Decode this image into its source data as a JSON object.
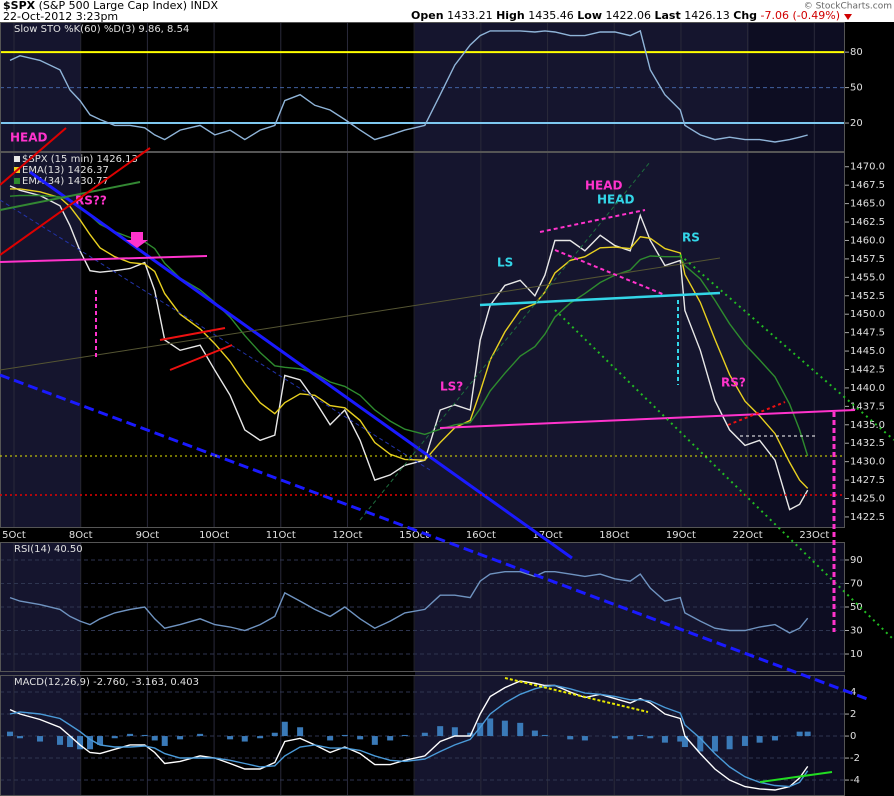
{
  "header": {
    "symbol": "$SPX",
    "name": "(S&P 500 Large Cap Index) INDX",
    "datetime": "22-Oct-2012 3:23pm",
    "quote": [
      {
        "label": "Open",
        "value": "1433.21"
      },
      {
        "label": "High",
        "value": "1435.46"
      },
      {
        "label": "Low",
        "value": "1422.06"
      },
      {
        "label": "Last",
        "value": "1426.13"
      },
      {
        "label": "Chg",
        "value": "-7.06 (-0.49%)"
      }
    ],
    "credit": "© StockCharts.com"
  },
  "chart_data": [
    {
      "type": "line",
      "title": "Slow STO %K(60) %D(3) 9.86, 8.54",
      "x": [
        -0.06,
        0.09,
        0.39,
        0.69,
        0.84,
        0.99,
        1.14,
        1.29,
        1.51,
        1.74,
        1.96,
        2.11,
        2.26,
        2.49,
        2.79,
        3.01,
        3.24,
        3.46,
        3.69,
        3.91,
        4.06,
        4.29,
        4.51,
        4.74,
        4.96,
        5.19,
        5.41,
        5.64,
        5.86,
        6.16,
        6.39,
        6.61,
        6.84,
        6.99,
        7.14,
        7.36,
        7.59,
        7.81,
        7.96,
        8.11,
        8.34,
        8.56,
        8.79,
        9.01,
        9.24,
        9.39,
        9.54,
        9.76,
        9.99,
        10.06,
        10.29,
        10.51,
        10.73,
        10.96,
        11.18,
        11.41,
        11.63,
        11.78,
        11.9
      ],
      "series": [
        {
          "color": "#8fb4d8",
          "values": [
            73,
            77,
            73,
            65,
            48,
            39,
            27,
            23,
            18,
            18,
            16,
            10,
            6,
            14,
            18,
            10,
            14,
            6,
            14,
            18,
            39,
            44,
            35,
            31,
            23,
            14,
            6,
            10,
            14,
            18,
            44,
            69,
            86,
            94,
            98,
            98,
            98,
            97,
            98,
            97,
            94,
            94,
            97,
            97,
            94,
            98,
            65,
            44,
            31,
            18,
            10,
            6,
            8,
            6,
            6,
            4,
            6,
            8,
            9.86
          ]
        }
      ],
      "xlim": [
        -0.21,
        12.46
      ],
      "ylim": [
        -4.5,
        105.5
      ],
      "yticks": [
        80,
        50,
        20
      ],
      "hlines": [
        {
          "value": 80,
          "color": "#ffff00"
        },
        {
          "value": 50,
          "color": "#4060a0",
          "dash": true
        },
        {
          "value": 20,
          "color": "#7ec8f0"
        }
      ]
    },
    {
      "type": "line",
      "x": [
        -0.06,
        0.09,
        0.39,
        0.69,
        0.84,
        0.99,
        1.14,
        1.29,
        1.51,
        1.74,
        1.96,
        2.11,
        2.26,
        2.49,
        2.79,
        3.01,
        3.24,
        3.46,
        3.69,
        3.91,
        4.06,
        4.29,
        4.51,
        4.74,
        4.96,
        5.19,
        5.41,
        5.64,
        5.86,
        6.16,
        6.39,
        6.61,
        6.84,
        6.99,
        7.14,
        7.36,
        7.59,
        7.81,
        7.96,
        8.11,
        8.34,
        8.56,
        8.79,
        9.01,
        9.24,
        9.39,
        9.54,
        9.76,
        9.99,
        10.06,
        10.29,
        10.51,
        10.73,
        10.96,
        11.18,
        11.41,
        11.63,
        11.78,
        11.9
      ],
      "series": [
        {
          "name": "$SPX (15 min) 1426.13",
          "color": "#e8e8e8",
          "values": [
            1467.4,
            1466.8,
            1466.1,
            1464.7,
            1462.0,
            1458.6,
            1455.9,
            1455.7,
            1455.9,
            1456.2,
            1457.0,
            1453.2,
            1446.5,
            1445.1,
            1445.8,
            1442.4,
            1439.0,
            1434.3,
            1432.9,
            1433.6,
            1441.7,
            1441.1,
            1438.3,
            1435.0,
            1437.0,
            1432.9,
            1427.5,
            1428.2,
            1429.5,
            1430.2,
            1437.0,
            1437.7,
            1437.0,
            1446.5,
            1451.2,
            1453.9,
            1454.6,
            1452.5,
            1455.3,
            1460.0,
            1460.0,
            1458.6,
            1460.7,
            1459.3,
            1458.6,
            1463.4,
            1460.0,
            1456.6,
            1457.3,
            1450.5,
            1445.1,
            1438.3,
            1434.3,
            1432.2,
            1432.9,
            1430.2,
            1423.5,
            1424.2,
            1426.13
          ]
        },
        {
          "name": "EMA(13) 1426.37",
          "color": "#e8d020",
          "values": [
            1467.0,
            1467.0,
            1466.6,
            1465.8,
            1464.6,
            1462.8,
            1460.8,
            1459.0,
            1457.8,
            1457.0,
            1456.8,
            1455.8,
            1452.8,
            1450.0,
            1448.0,
            1446.0,
            1443.6,
            1440.6,
            1438.0,
            1436.5,
            1438.0,
            1439.2,
            1439.0,
            1437.6,
            1437.3,
            1435.6,
            1432.6,
            1431.0,
            1430.3,
            1430.2,
            1432.6,
            1434.6,
            1435.6,
            1439.5,
            1443.8,
            1447.6,
            1450.6,
            1451.4,
            1453.0,
            1455.6,
            1457.3,
            1457.8,
            1459.0,
            1459.1,
            1458.9,
            1460.5,
            1460.3,
            1458.9,
            1458.3,
            1455.4,
            1451.6,
            1446.6,
            1441.8,
            1438.2,
            1436.2,
            1433.8,
            1429.9,
            1427.5,
            1426.37
          ]
        },
        {
          "name": "EMA(34) 1430.77",
          "color": "#2e8b2e",
          "values": [
            1466.0,
            1466.1,
            1466.1,
            1465.9,
            1465.5,
            1464.6,
            1463.4,
            1462.2,
            1461.2,
            1460.4,
            1459.8,
            1458.9,
            1456.9,
            1454.9,
            1453.3,
            1451.6,
            1449.6,
            1447.1,
            1444.8,
            1443.0,
            1442.8,
            1442.6,
            1442.0,
            1440.8,
            1440.2,
            1439.0,
            1437.0,
            1435.5,
            1434.4,
            1433.7,
            1434.4,
            1435.0,
            1435.3,
            1437.2,
            1439.6,
            1442.0,
            1444.3,
            1445.6,
            1447.3,
            1449.6,
            1451.5,
            1452.8,
            1454.3,
            1455.3,
            1456.0,
            1457.4,
            1457.9,
            1457.8,
            1457.8,
            1456.6,
            1454.8,
            1451.9,
            1448.7,
            1445.9,
            1443.8,
            1441.5,
            1437.8,
            1434.3,
            1430.77
          ]
        }
      ],
      "xlim": [
        -0.21,
        12.46
      ],
      "xticks": [
        {
          "value": 0,
          "label": "5Oct"
        },
        {
          "value": 1,
          "label": "8Oct"
        },
        {
          "value": 2,
          "label": "9Oct"
        },
        {
          "value": 3,
          "label": "10Oct"
        },
        {
          "value": 4,
          "label": "11Oct"
        },
        {
          "value": 5,
          "label": "12Oct"
        },
        {
          "value": 6,
          "label": "15Oct"
        },
        {
          "value": 7,
          "label": "16Oct"
        },
        {
          "value": 8,
          "label": "17Oct"
        },
        {
          "value": 9,
          "label": "18Oct"
        },
        {
          "value": 10,
          "label": "19Oct"
        },
        {
          "value": 11,
          "label": "22Oct"
        },
        {
          "value": 12,
          "label": "23Oct"
        }
      ],
      "ylim": [
        1421,
        1472
      ],
      "yticks": [
        1422.5,
        {
          "value": 1425,
          "label": "1425.0"
        },
        1427.5,
        {
          "value": 1430,
          "label": "1430.0"
        },
        1432.5,
        {
          "value": 1435,
          "label": "1435.0"
        },
        1437.5,
        {
          "value": 1440,
          "label": "1440.0"
        },
        1442.5,
        {
          "value": 1445,
          "label": "1445.0"
        },
        1447.5,
        {
          "value": 1450,
          "label": "1450.0"
        },
        1452.5,
        {
          "value": 1455,
          "label": "1455.0"
        },
        1457.5,
        {
          "value": 1460,
          "label": "1460.0"
        },
        1462.5,
        {
          "value": 1465,
          "label": "1465.0"
        },
        1467.5,
        {
          "value": 1470,
          "label": "1470.0"
        }
      ],
      "annotations": [
        {
          "text": "HEAD",
          "color": "#ff33cc"
        },
        {
          "text": "RS??",
          "color": "#ff33cc"
        },
        {
          "text": "HEAD",
          "color": "#ff33cc"
        },
        {
          "text": "HEAD",
          "color": "#33d6e8"
        },
        {
          "text": "LS",
          "color": "#33d6e8"
        },
        {
          "text": "RS",
          "color": "#33d6e8"
        },
        {
          "text": "LS?",
          "color": "#ff33cc"
        },
        {
          "text": "RS?",
          "color": "#ff33cc"
        }
      ]
    },
    {
      "type": "line",
      "title": "RSI(14) 40.50",
      "x": [
        -0.06,
        0.09,
        0.39,
        0.69,
        0.84,
        0.99,
        1.14,
        1.29,
        1.51,
        1.74,
        1.96,
        2.11,
        2.26,
        2.49,
        2.79,
        3.01,
        3.24,
        3.46,
        3.69,
        3.91,
        4.06,
        4.29,
        4.51,
        4.74,
        4.96,
        5.19,
        5.41,
        5.64,
        5.86,
        6.16,
        6.39,
        6.61,
        6.84,
        6.99,
        7.14,
        7.36,
        7.59,
        7.81,
        7.96,
        8.11,
        8.34,
        8.56,
        8.79,
        9.01,
        9.24,
        9.39,
        9.54,
        9.76,
        9.99,
        10.06,
        10.29,
        10.51,
        10.73,
        10.96,
        11.18,
        11.41,
        11.63,
        11.78,
        11.9
      ],
      "series": [
        {
          "color": "#6f93c0",
          "values": [
            58,
            55,
            52,
            48,
            42,
            38,
            35,
            40,
            45,
            48,
            50,
            40,
            32,
            35,
            40,
            35,
            33,
            30,
            35,
            42,
            62,
            55,
            48,
            42,
            50,
            40,
            32,
            38,
            45,
            48,
            60,
            60,
            58,
            72,
            78,
            80,
            80,
            76,
            80,
            80,
            78,
            76,
            78,
            74,
            72,
            78,
            66,
            55,
            58,
            45,
            38,
            32,
            30,
            30,
            33,
            35,
            28,
            32,
            40.5
          ]
        }
      ],
      "xlim": [
        -0.21,
        12.46
      ],
      "ylim": [
        -5.3,
        105.3
      ],
      "yticks": [
        90,
        70,
        50,
        30,
        10
      ],
      "grid": true
    },
    {
      "type": "line",
      "title": "MACD(12,26,9) -2.760, -3.163, 0.403",
      "x": [
        -0.06,
        0.09,
        0.39,
        0.69,
        0.84,
        0.99,
        1.14,
        1.29,
        1.51,
        1.74,
        1.96,
        2.11,
        2.26,
        2.49,
        2.79,
        3.01,
        3.24,
        3.46,
        3.69,
        3.91,
        4.06,
        4.29,
        4.51,
        4.74,
        4.96,
        5.19,
        5.41,
        5.64,
        5.86,
        6.16,
        6.39,
        6.61,
        6.84,
        6.99,
        7.14,
        7.36,
        7.59,
        7.81,
        7.96,
        8.11,
        8.34,
        8.56,
        8.79,
        9.01,
        9.24,
        9.39,
        9.54,
        9.76,
        9.99,
        10.06,
        10.29,
        10.51,
        10.73,
        10.96,
        11.18,
        11.41,
        11.63,
        11.78,
        11.9
      ],
      "series": [
        {
          "type": "bar",
          "color": "#3a7ab8",
          "values": [
            0.4,
            -0.2,
            -0.5,
            -0.8,
            -1.0,
            -1.2,
            -1.2,
            -0.8,
            -0.2,
            0.2,
            0.1,
            -0.4,
            -0.9,
            -0.3,
            0.2,
            0.0,
            -0.3,
            -0.5,
            -0.2,
            0.3,
            1.3,
            0.8,
            0.0,
            -0.4,
            0.1,
            -0.3,
            -0.8,
            -0.4,
            0.1,
            0.3,
            0.9,
            0.8,
            0.3,
            1.2,
            1.6,
            1.4,
            1.2,
            0.5,
            0.1,
            0.0,
            -0.3,
            -0.4,
            0.0,
            -0.2,
            -0.3,
            0.1,
            -0.2,
            -0.6,
            -0.5,
            -1.0,
            -1.4,
            -1.4,
            -1.2,
            -0.9,
            -0.6,
            -0.4,
            0.0,
            0.4,
            0.403
          ]
        },
        {
          "type": "line",
          "color": "#ffffff",
          "values": [
            2.4,
            2.0,
            1.5,
            0.8,
            0.0,
            -0.8,
            -1.5,
            -1.6,
            -1.2,
            -0.8,
            -0.8,
            -1.5,
            -2.5,
            -2.3,
            -1.8,
            -2.0,
            -2.5,
            -3.0,
            -3.0,
            -2.4,
            -0.5,
            -0.2,
            -0.8,
            -1.5,
            -1.0,
            -1.6,
            -2.6,
            -2.6,
            -2.2,
            -1.8,
            -0.5,
            0.0,
            0.0,
            2.0,
            3.6,
            4.4,
            5.0,
            4.8,
            4.6,
            4.6,
            4.0,
            3.5,
            3.8,
            3.4,
            3.0,
            3.4,
            3.0,
            2.0,
            1.6,
            0.0,
            -1.6,
            -3.0,
            -4.0,
            -4.6,
            -4.8,
            -4.9,
            -4.6,
            -3.8,
            -2.76
          ]
        },
        {
          "type": "line",
          "color": "#4a9ad8",
          "values": [
            2.0,
            2.2,
            2.0,
            1.6,
            1.0,
            0.4,
            -0.3,
            -0.8,
            -1.0,
            -1.0,
            -0.9,
            -1.1,
            -1.6,
            -2.0,
            -2.0,
            -2.0,
            -2.2,
            -2.5,
            -2.8,
            -2.7,
            -1.8,
            -1.0,
            -0.8,
            -1.1,
            -1.1,
            -1.3,
            -1.8,
            -2.2,
            -2.3,
            -2.1,
            -1.4,
            -0.8,
            -0.3,
            0.8,
            2.0,
            3.0,
            3.8,
            4.3,
            4.5,
            4.6,
            4.3,
            3.9,
            3.8,
            3.6,
            3.3,
            3.3,
            3.2,
            2.6,
            2.1,
            1.0,
            -0.2,
            -1.6,
            -2.8,
            -3.7,
            -4.2,
            -4.5,
            -4.6,
            -4.2,
            -3.163
          ]
        }
      ],
      "xlim": [
        -0.21,
        12.46
      ],
      "ylim": [
        -5.45,
        5.55
      ],
      "yticks": [
        4,
        2,
        0,
        -2,
        -4
      ],
      "grid": true
    }
  ]
}
